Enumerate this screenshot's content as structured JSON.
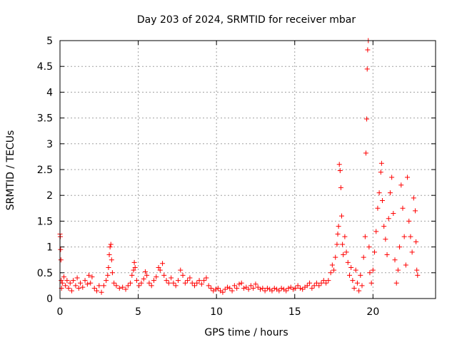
{
  "chart_data": {
    "type": "scatter",
    "title": "Day 203 of 2024, SRMTID for receiver mbar",
    "xlabel": "GPS time / hours",
    "ylabel": "SRMTID / TECUs",
    "xlim": [
      0,
      24
    ],
    "ylim": [
      0,
      5
    ],
    "xticks": [
      0,
      5,
      10,
      15,
      20
    ],
    "yticks": [
      0,
      0.5,
      1,
      1.5,
      2,
      2.5,
      3,
      3.5,
      4,
      4.5,
      5
    ],
    "grid": true,
    "marker": "+",
    "series": [
      {
        "name": "SRMTID",
        "color": "#ff0000",
        "points": [
          [
            0.0,
            1.25
          ],
          [
            0.02,
            1.2
          ],
          [
            0.04,
            0.95
          ],
          [
            0.06,
            0.75
          ],
          [
            0.08,
            0.35
          ],
          [
            0.1,
            0.2
          ],
          [
            0.15,
            0.3
          ],
          [
            0.25,
            0.42
          ],
          [
            0.35,
            0.25
          ],
          [
            0.45,
            0.35
          ],
          [
            0.55,
            0.2
          ],
          [
            0.65,
            0.3
          ],
          [
            0.75,
            0.15
          ],
          [
            0.85,
            0.35
          ],
          [
            1.0,
            0.25
          ],
          [
            1.1,
            0.4
          ],
          [
            1.2,
            0.2
          ],
          [
            1.3,
            0.3
          ],
          [
            1.45,
            0.22
          ],
          [
            1.6,
            0.35
          ],
          [
            1.75,
            0.28
          ],
          [
            1.85,
            0.45
          ],
          [
            1.95,
            0.3
          ],
          [
            2.05,
            0.42
          ],
          [
            2.2,
            0.2
          ],
          [
            2.35,
            0.15
          ],
          [
            2.5,
            0.25
          ],
          [
            2.65,
            0.12
          ],
          [
            2.8,
            0.25
          ],
          [
            2.95,
            0.35
          ],
          [
            3.05,
            0.45
          ],
          [
            3.1,
            0.6
          ],
          [
            3.15,
            0.85
          ],
          [
            3.2,
            1.0
          ],
          [
            3.25,
            1.05
          ],
          [
            3.3,
            0.75
          ],
          [
            3.35,
            0.5
          ],
          [
            3.45,
            0.3
          ],
          [
            3.6,
            0.25
          ],
          [
            3.8,
            0.2
          ],
          [
            4.0,
            0.22
          ],
          [
            4.2,
            0.18
          ],
          [
            4.35,
            0.25
          ],
          [
            4.5,
            0.3
          ],
          [
            4.6,
            0.45
          ],
          [
            4.7,
            0.55
          ],
          [
            4.75,
            0.7
          ],
          [
            4.8,
            0.6
          ],
          [
            4.9,
            0.35
          ],
          [
            5.05,
            0.25
          ],
          [
            5.2,
            0.3
          ],
          [
            5.35,
            0.38
          ],
          [
            5.45,
            0.52
          ],
          [
            5.55,
            0.45
          ],
          [
            5.7,
            0.3
          ],
          [
            5.85,
            0.25
          ],
          [
            6.0,
            0.35
          ],
          [
            6.15,
            0.42
          ],
          [
            6.3,
            0.6
          ],
          [
            6.4,
            0.55
          ],
          [
            6.55,
            0.68
          ],
          [
            6.65,
            0.45
          ],
          [
            6.8,
            0.35
          ],
          [
            6.95,
            0.3
          ],
          [
            7.1,
            0.4
          ],
          [
            7.25,
            0.3
          ],
          [
            7.4,
            0.25
          ],
          [
            7.55,
            0.35
          ],
          [
            7.7,
            0.55
          ],
          [
            7.85,
            0.45
          ],
          [
            8.0,
            0.3
          ],
          [
            8.15,
            0.35
          ],
          [
            8.3,
            0.4
          ],
          [
            8.45,
            0.3
          ],
          [
            8.6,
            0.25
          ],
          [
            8.75,
            0.3
          ],
          [
            8.9,
            0.35
          ],
          [
            9.05,
            0.28
          ],
          [
            9.2,
            0.35
          ],
          [
            9.35,
            0.4
          ],
          [
            9.5,
            0.25
          ],
          [
            9.65,
            0.2
          ],
          [
            9.8,
            0.15
          ],
          [
            9.95,
            0.18
          ],
          [
            10.1,
            0.2
          ],
          [
            10.25,
            0.15
          ],
          [
            10.4,
            0.12
          ],
          [
            10.55,
            0.18
          ],
          [
            10.7,
            0.22
          ],
          [
            10.85,
            0.2
          ],
          [
            11.0,
            0.15
          ],
          [
            11.15,
            0.25
          ],
          [
            11.3,
            0.2
          ],
          [
            11.45,
            0.28
          ],
          [
            11.6,
            0.3
          ],
          [
            11.75,
            0.2
          ],
          [
            11.9,
            0.22
          ],
          [
            12.05,
            0.18
          ],
          [
            12.2,
            0.25
          ],
          [
            12.35,
            0.2
          ],
          [
            12.5,
            0.28
          ],
          [
            12.65,
            0.22
          ],
          [
            12.8,
            0.18
          ],
          [
            12.95,
            0.2
          ],
          [
            13.1,
            0.15
          ],
          [
            13.25,
            0.2
          ],
          [
            13.4,
            0.18
          ],
          [
            13.55,
            0.15
          ],
          [
            13.7,
            0.2
          ],
          [
            13.85,
            0.18
          ],
          [
            14.0,
            0.15
          ],
          [
            14.15,
            0.2
          ],
          [
            14.3,
            0.18
          ],
          [
            14.45,
            0.15
          ],
          [
            14.6,
            0.2
          ],
          [
            14.75,
            0.22
          ],
          [
            14.9,
            0.18
          ],
          [
            15.05,
            0.2
          ],
          [
            15.2,
            0.25
          ],
          [
            15.35,
            0.2
          ],
          [
            15.5,
            0.18
          ],
          [
            15.65,
            0.22
          ],
          [
            15.8,
            0.25
          ],
          [
            15.95,
            0.3
          ],
          [
            16.1,
            0.2
          ],
          [
            16.25,
            0.25
          ],
          [
            16.4,
            0.3
          ],
          [
            16.55,
            0.25
          ],
          [
            16.7,
            0.3
          ],
          [
            16.85,
            0.35
          ],
          [
            17.0,
            0.3
          ],
          [
            17.15,
            0.35
          ],
          [
            17.3,
            0.5
          ],
          [
            17.4,
            0.65
          ],
          [
            17.5,
            0.55
          ],
          [
            17.6,
            0.8
          ],
          [
            17.7,
            1.05
          ],
          [
            17.75,
            1.25
          ],
          [
            17.8,
            1.4
          ],
          [
            17.85,
            2.6
          ],
          [
            17.9,
            2.48
          ],
          [
            17.95,
            2.15
          ],
          [
            18.0,
            1.6
          ],
          [
            18.05,
            1.05
          ],
          [
            18.1,
            0.85
          ],
          [
            18.2,
            1.2
          ],
          [
            18.3,
            0.9
          ],
          [
            18.4,
            0.7
          ],
          [
            18.5,
            0.45
          ],
          [
            18.6,
            0.6
          ],
          [
            18.7,
            0.35
          ],
          [
            18.8,
            0.2
          ],
          [
            18.9,
            0.55
          ],
          [
            19.0,
            0.3
          ],
          [
            19.1,
            0.15
          ],
          [
            19.2,
            0.45
          ],
          [
            19.3,
            0.25
          ],
          [
            19.4,
            0.8
          ],
          [
            19.5,
            1.2
          ],
          [
            19.55,
            2.82
          ],
          [
            19.6,
            3.48
          ],
          [
            19.63,
            4.45
          ],
          [
            19.66,
            4.82
          ],
          [
            19.7,
            5.0
          ],
          [
            19.75,
            1.0
          ],
          [
            19.8,
            0.5
          ],
          [
            19.9,
            0.3
          ],
          [
            20.0,
            0.55
          ],
          [
            20.1,
            0.9
          ],
          [
            20.2,
            1.3
          ],
          [
            20.3,
            1.75
          ],
          [
            20.4,
            2.05
          ],
          [
            20.5,
            2.45
          ],
          [
            20.55,
            2.62
          ],
          [
            20.6,
            1.9
          ],
          [
            20.7,
            1.4
          ],
          [
            20.8,
            1.15
          ],
          [
            20.9,
            0.85
          ],
          [
            21.0,
            1.55
          ],
          [
            21.1,
            2.05
          ],
          [
            21.2,
            2.35
          ],
          [
            21.3,
            1.65
          ],
          [
            21.4,
            0.75
          ],
          [
            21.5,
            0.3
          ],
          [
            21.6,
            0.55
          ],
          [
            21.7,
            1.0
          ],
          [
            21.8,
            2.2
          ],
          [
            21.9,
            1.75
          ],
          [
            22.0,
            1.2
          ],
          [
            22.1,
            0.65
          ],
          [
            22.2,
            2.35
          ],
          [
            22.3,
            1.5
          ],
          [
            22.4,
            1.2
          ],
          [
            22.5,
            0.9
          ],
          [
            22.6,
            1.95
          ],
          [
            22.7,
            1.7
          ],
          [
            22.75,
            1.1
          ],
          [
            22.8,
            0.55
          ],
          [
            22.85,
            0.45
          ]
        ]
      }
    ]
  }
}
